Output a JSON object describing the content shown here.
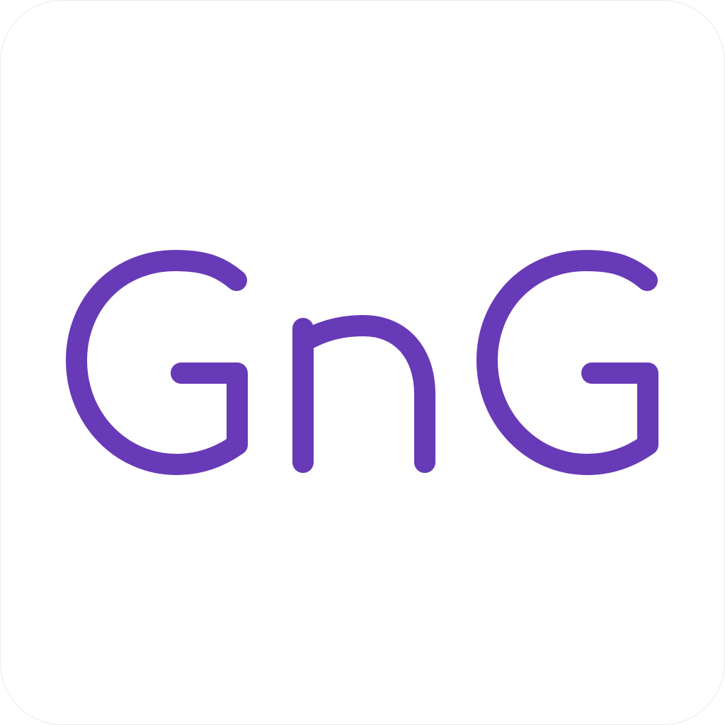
{
  "logo": {
    "text": "GnG",
    "color": "#673AB7",
    "background": "#FFFFFF"
  }
}
